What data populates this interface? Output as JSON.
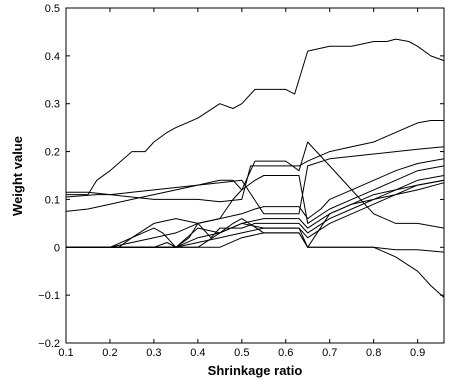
{
  "chart_data": {
    "type": "line",
    "xlabel": "Shrinkage ratio",
    "ylabel": "Weight value",
    "xlim": [
      0.1,
      0.96
    ],
    "ylim": [
      -0.2,
      0.5
    ],
    "xticks": [
      0.1,
      0.2,
      0.3,
      0.4,
      0.5,
      0.6,
      0.7,
      0.8,
      0.9
    ],
    "xtick_labels": [
      "0.1",
      "0.2",
      "0.3",
      "0.4",
      "0.5",
      "0.6",
      "0.7",
      "0.8",
      "0.9"
    ],
    "yticks": [
      -0.2,
      -0.1,
      0,
      0.1,
      0.2,
      0.3,
      0.4,
      0.5
    ],
    "ytick_labels": [
      "−0.2",
      "−0.1",
      "0",
      "0.1",
      "0.2",
      "0.3",
      "0.4",
      "0.5"
    ],
    "grid": false,
    "legend": "none",
    "series": [
      {
        "x": [
          0.1,
          0.15,
          0.17,
          0.2,
          0.25,
          0.28,
          0.3,
          0.33,
          0.35,
          0.4,
          0.45,
          0.48,
          0.5,
          0.53,
          0.55,
          0.58,
          0.6,
          0.62,
          0.65,
          0.7,
          0.75,
          0.8,
          0.83,
          0.85,
          0.88,
          0.9,
          0.93,
          0.96
        ],
        "y": [
          0.11,
          0.11,
          0.14,
          0.16,
          0.2,
          0.2,
          0.22,
          0.24,
          0.25,
          0.27,
          0.3,
          0.29,
          0.3,
          0.33,
          0.33,
          0.33,
          0.33,
          0.32,
          0.41,
          0.42,
          0.42,
          0.43,
          0.43,
          0.435,
          0.43,
          0.42,
          0.4,
          0.39
        ]
      },
      {
        "x": [
          0.1,
          0.15,
          0.2,
          0.25,
          0.3,
          0.35,
          0.4,
          0.45,
          0.5,
          0.52,
          0.55,
          0.6,
          0.63,
          0.65,
          0.7,
          0.75,
          0.8,
          0.85,
          0.9,
          0.93,
          0.96
        ],
        "y": [
          0.115,
          0.115,
          0.11,
          0.105,
          0.1,
          0.1,
          0.1,
          0.095,
          0.1,
          0.17,
          0.17,
          0.17,
          0.17,
          0.18,
          0.2,
          0.21,
          0.22,
          0.24,
          0.26,
          0.265,
          0.265
        ]
      },
      {
        "x": [
          0.1,
          0.15,
          0.2,
          0.25,
          0.3,
          0.35,
          0.4,
          0.45,
          0.48,
          0.5,
          0.53,
          0.55,
          0.6,
          0.63,
          0.65,
          0.67,
          0.7,
          0.75,
          0.8,
          0.85,
          0.9,
          0.96
        ],
        "y": [
          0.075,
          0.08,
          0.09,
          0.1,
          0.11,
          0.12,
          0.13,
          0.14,
          0.14,
          0.12,
          0.18,
          0.18,
          0.18,
          0.16,
          0.22,
          0.2,
          0.17,
          0.12,
          0.07,
          0.05,
          0.05,
          0.04
        ]
      },
      {
        "x": [
          0.1,
          0.17,
          0.2,
          0.25,
          0.3,
          0.35,
          0.4,
          0.45,
          0.5,
          0.55,
          0.6,
          0.63,
          0.65,
          0.7,
          0.75,
          0.8,
          0.85,
          0.9,
          0.96
        ],
        "y": [
          0.105,
          0.11,
          0.11,
          0.115,
          0.12,
          0.125,
          0.13,
          0.135,
          0.14,
          0.07,
          0.07,
          0.07,
          0.17,
          0.185,
          0.19,
          0.195,
          0.2,
          0.205,
          0.21
        ]
      },
      {
        "x": [
          0.1,
          0.2,
          0.25,
          0.3,
          0.35,
          0.4,
          0.45,
          0.5,
          0.53,
          0.55,
          0.6,
          0.63,
          0.65,
          0.68,
          0.7,
          0.75,
          0.8,
          0.85,
          0.9,
          0.96
        ],
        "y": [
          0,
          0,
          0.02,
          0.05,
          0.06,
          0.05,
          0.06,
          0.07,
          0.08,
          0.085,
          0.085,
          0.085,
          0.06,
          0.08,
          0.1,
          0.12,
          0.14,
          0.16,
          0.175,
          0.185
        ]
      },
      {
        "x": [
          0.1,
          0.2,
          0.25,
          0.3,
          0.35,
          0.4,
          0.45,
          0.48,
          0.5,
          0.53,
          0.55,
          0.6,
          0.63,
          0.65,
          0.7,
          0.75,
          0.8,
          0.85,
          0.9,
          0.96
        ],
        "y": [
          0,
          0,
          0.01,
          0.02,
          0.03,
          0.05,
          0.06,
          0.1,
          0.12,
          0.14,
          0.15,
          0.15,
          0.15,
          0.05,
          0.08,
          0.1,
          0.12,
          0.14,
          0.16,
          0.17
        ]
      },
      {
        "x": [
          0.1,
          0.22,
          0.25,
          0.3,
          0.32,
          0.35,
          0.4,
          0.45,
          0.5,
          0.55,
          0.6,
          0.63,
          0.65,
          0.7,
          0.75,
          0.8,
          0.85,
          0.9,
          0.96
        ],
        "y": [
          0,
          0,
          0.02,
          0.04,
          0.03,
          0.0,
          0.04,
          0.03,
          0.05,
          0.06,
          0.06,
          0.06,
          0.04,
          0.07,
          0.09,
          0.11,
          0.12,
          0.14,
          0.15
        ]
      },
      {
        "x": [
          0.1,
          0.3,
          0.33,
          0.35,
          0.38,
          0.4,
          0.43,
          0.45,
          0.5,
          0.53,
          0.55,
          0.6,
          0.63,
          0.65,
          0.7,
          0.75,
          0.8,
          0.85,
          0.9,
          0.96
        ],
        "y": [
          0,
          0,
          0.01,
          0.0,
          0.02,
          0.05,
          0.02,
          0.04,
          0.04,
          0.05,
          0.05,
          0.05,
          0.05,
          0.03,
          0.06,
          0.08,
          0.1,
          0.12,
          0.13,
          0.14
        ]
      },
      {
        "x": [
          0.1,
          0.35,
          0.4,
          0.45,
          0.5,
          0.55,
          0.6,
          0.63,
          0.65,
          0.7,
          0.75,
          0.8,
          0.85,
          0.9,
          0.96
        ],
        "y": [
          0,
          0,
          0.01,
          0.02,
          0.03,
          0.04,
          0.04,
          0.04,
          0.02,
          0.05,
          0.07,
          0.09,
          0.11,
          0.12,
          0.135
        ]
      },
      {
        "x": [
          0.1,
          0.4,
          0.45,
          0.5,
          0.55,
          0.6,
          0.63,
          0.65,
          0.7,
          0.75,
          0.8,
          0.85,
          0.9,
          0.93,
          0.96
        ],
        "y": [
          0,
          0,
          0.03,
          0.05,
          0.04,
          0.04,
          0.04,
          0,
          0,
          0,
          0,
          -0.02,
          -0.05,
          -0.08,
          -0.105
        ]
      },
      {
        "x": [
          0.1,
          0.45,
          0.5,
          0.55,
          0.6,
          0.63,
          0.65,
          0.7,
          0.75,
          0.8,
          0.85,
          0.9,
          0.96
        ],
        "y": [
          0,
          0,
          0.02,
          0.03,
          0.03,
          0.03,
          0,
          0,
          0,
          0,
          -0.005,
          -0.005,
          -0.01
        ]
      },
      {
        "x": [
          0.1,
          0.35,
          0.4,
          0.45,
          0.48,
          0.5,
          0.55,
          0.6,
          0.63,
          0.65,
          0.7,
          0.75,
          0.8,
          0.85,
          0.9,
          0.96
        ],
        "y": [
          0,
          0,
          0.02,
          0.03,
          0.05,
          0.06,
          0.03,
          0.03,
          0.03,
          0.0,
          0.07,
          0.09,
          0.1,
          0.11,
          0.13,
          0.14
        ]
      }
    ]
  }
}
